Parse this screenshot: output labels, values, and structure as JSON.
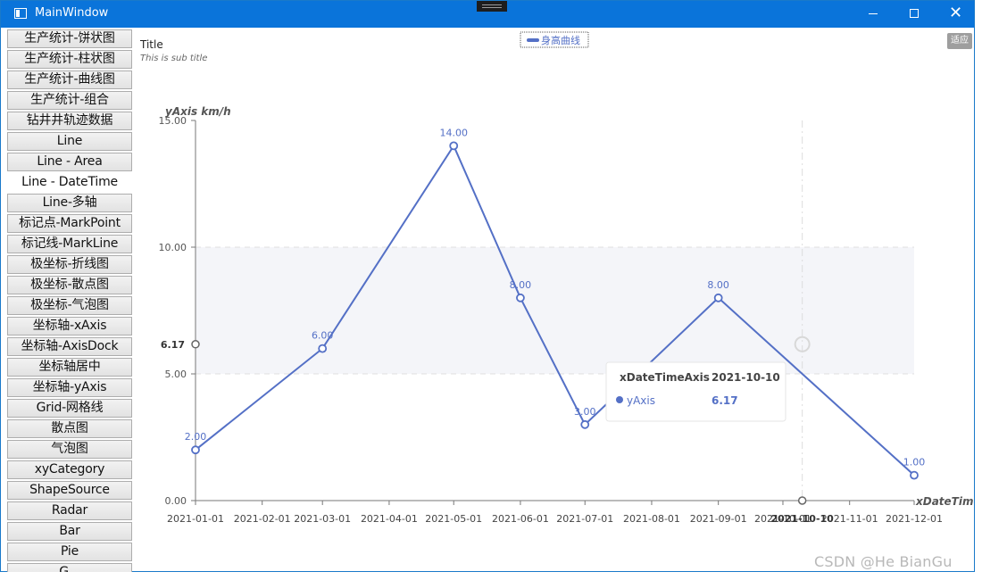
{
  "window": {
    "title": "MainWindow"
  },
  "sidebar": {
    "items": [
      {
        "label": "生产统计-饼状图"
      },
      {
        "label": "生产统计-柱状图"
      },
      {
        "label": "生产统计-曲线图"
      },
      {
        "label": "生产统计-组合"
      },
      {
        "label": "钻井井轨迹数据"
      },
      {
        "label": "Line"
      },
      {
        "label": "Line - Area"
      },
      {
        "label": "Line - DateTime",
        "active": true
      },
      {
        "label": "Line-多轴"
      },
      {
        "label": "标记点-MarkPoint"
      },
      {
        "label": "标记线-MarkLine"
      },
      {
        "label": "极坐标-折线图"
      },
      {
        "label": "极坐标-散点图"
      },
      {
        "label": "极坐标-气泡图"
      },
      {
        "label": "坐标轴-xAxis"
      },
      {
        "label": "坐标轴-AxisDock"
      },
      {
        "label": "坐标轴居中"
      },
      {
        "label": "坐标轴-yAxis"
      },
      {
        "label": "Grid-网格线"
      },
      {
        "label": "散点图"
      },
      {
        "label": "气泡图"
      },
      {
        "label": "xyCategory"
      },
      {
        "label": "ShapeSource"
      },
      {
        "label": "Radar"
      },
      {
        "label": "Bar"
      },
      {
        "label": "Pie"
      },
      {
        "label": "G..."
      }
    ]
  },
  "toolbar": {
    "fit_label": "适应"
  },
  "watermark": "CSDN @He BianGu",
  "chart_data": {
    "type": "line",
    "title": "Title",
    "subtitle": "This is sub title",
    "legend": {
      "position": "top-center",
      "entries": [
        "身高曲线"
      ]
    },
    "xlabel": "xDateTime",
    "ylabel": "yAxis km/h",
    "ylim": [
      0,
      15
    ],
    "yticks": [
      0,
      5,
      10,
      15
    ],
    "ytick_labels": [
      "0.00",
      "5.00",
      "10.00",
      "15.00"
    ],
    "xticks": [
      "2021-01-01",
      "2021-02-01",
      "2021-03-01",
      "2021-04-01",
      "2021-05-01",
      "2021-06-01",
      "2021-07-01",
      "2021-08-01",
      "2021-09-01",
      "2021-10-01",
      "2021-11-01",
      "2021-12-01"
    ],
    "xtick_labels": [
      "2021-01-01",
      "2021-02-01",
      "2021-03-01",
      "2021-04-01",
      "2021-05-01",
      "2021-06-01",
      "2021-07-01",
      "2021-08-01",
      "2021-09-01",
      "2021-10-01",
      "2021-11-01",
      "2021-12-01"
    ],
    "band": {
      "from": 5,
      "to": 10,
      "color": "#f4f5f9"
    },
    "grid": {
      "horizontal_dashed_at": [
        5,
        10
      ]
    },
    "series": [
      {
        "name": "身高曲线",
        "color": "#5470c6",
        "points": [
          {
            "x": "2021-01-01",
            "y": 2,
            "label": "2.00"
          },
          {
            "x": "2021-03-01",
            "y": 6,
            "label": "6.00"
          },
          {
            "x": "2021-05-01",
            "y": 14,
            "label": "14.00"
          },
          {
            "x": "2021-06-01",
            "y": 8,
            "label": "8.00"
          },
          {
            "x": "2021-07-01",
            "y": 3,
            "label": "3.00"
          },
          {
            "x": "2021-09-01",
            "y": 8,
            "label": "8.00"
          },
          {
            "x": "2021-12-01",
            "y": 1,
            "label": "1.00"
          }
        ]
      }
    ],
    "crosshair": {
      "x": "2021-10-10",
      "y": 6.17,
      "y_label": "6.17",
      "x_label": "2021-10-10"
    },
    "tooltip": {
      "header_name": "xDateTimeAxis",
      "header_value": "2021-10-10",
      "row_name": "yAxis",
      "row_value": "6.17"
    }
  }
}
